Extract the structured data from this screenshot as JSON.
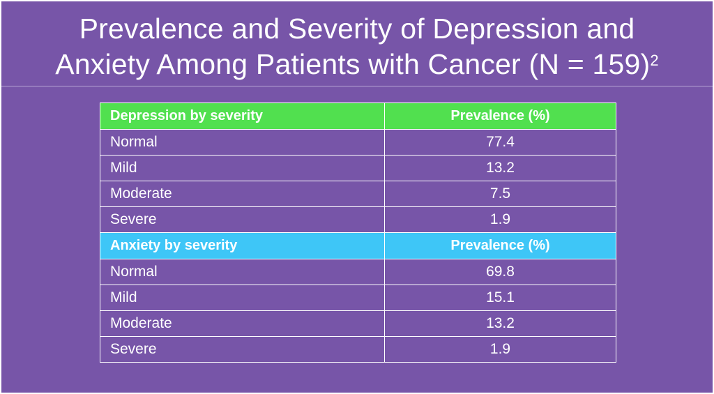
{
  "title": {
    "line1": "Prevalence and Severity of Depression and",
    "line2": "Anxiety Among Patients with Cancer (N = 159)",
    "superscript": "2"
  },
  "colors": {
    "background": "#7755a8",
    "depression_header": "#51e04f",
    "anxiety_header": "#3ec6f7",
    "text": "#ffffff"
  },
  "table": {
    "depression": {
      "header_label": "Depression by severity",
      "header_value": "Prevalence (%)",
      "rows": [
        {
          "label": "Normal",
          "value": "77.4"
        },
        {
          "label": "Mild",
          "value": "13.2"
        },
        {
          "label": "Moderate",
          "value": "7.5"
        },
        {
          "label": "Severe",
          "value": "1.9"
        }
      ]
    },
    "anxiety": {
      "header_label": "Anxiety by severity",
      "header_value": "Prevalence (%)",
      "rows": [
        {
          "label": "Normal",
          "value": "69.8"
        },
        {
          "label": "Mild",
          "value": "15.1"
        },
        {
          "label": "Moderate",
          "value": "13.2"
        },
        {
          "label": "Severe",
          "value": "1.9"
        }
      ]
    }
  }
}
